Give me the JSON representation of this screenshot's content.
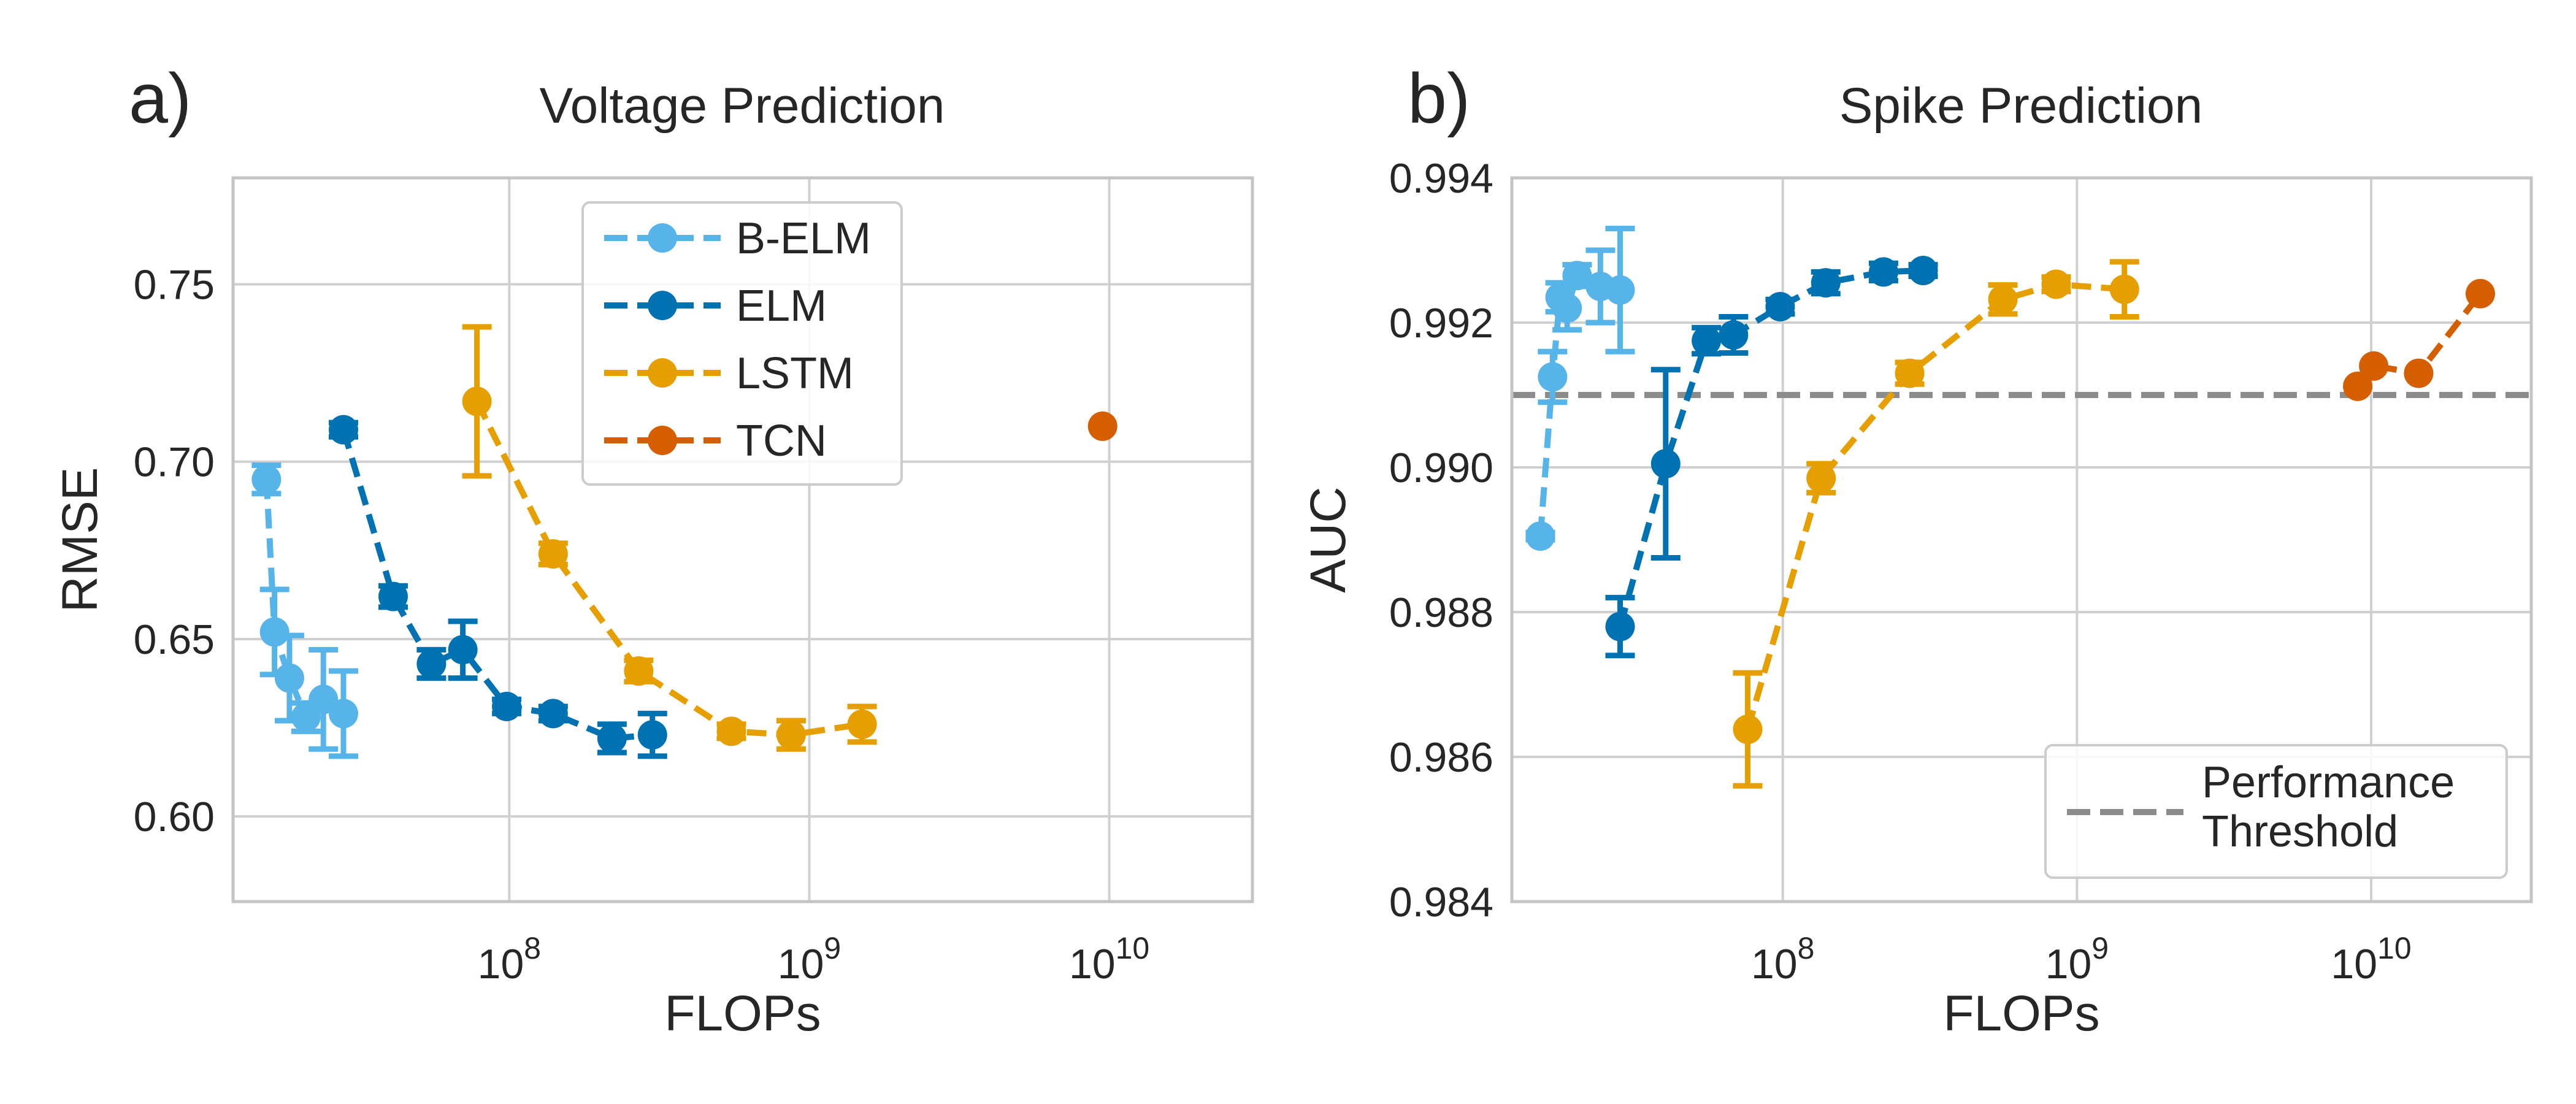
{
  "chart_data": [
    {
      "type": "line",
      "panel_label": "a)",
      "title": "Voltage Prediction",
      "xlabel": "FLOPs",
      "ylabel": "RMSE",
      "xscale": "log",
      "xlim": [
        12000000,
        30000000000
      ],
      "ylim": [
        0.576,
        0.78
      ],
      "grid": true,
      "x_ticks": [
        {
          "value": 100000000,
          "base": "10",
          "exp": "8"
        },
        {
          "value": 1000000000,
          "base": "10",
          "exp": "9"
        },
        {
          "value": 10000000000,
          "base": "10",
          "exp": "10"
        }
      ],
      "y_ticks": [
        {
          "value": 0.6,
          "label": "0.60"
        },
        {
          "value": 0.65,
          "label": "0.65"
        },
        {
          "value": 0.7,
          "label": "0.70"
        },
        {
          "value": 0.75,
          "label": "0.75"
        }
      ],
      "legend_position": "top-center",
      "series": [
        {
          "name": "B-ELM",
          "color": "#56b4e9",
          "x": [
            15500000,
            16500000,
            18500000,
            21000000,
            24000000,
            28000000
          ],
          "y": [
            0.695,
            0.652,
            0.639,
            0.628,
            0.633,
            0.629
          ],
          "err": [
            0.004,
            0.012,
            0.012,
            0.004,
            0.014,
            0.012
          ]
        },
        {
          "name": "ELM",
          "color": "#0072b2",
          "x": [
            28000000,
            41000000,
            55000000,
            70000000,
            98000000,
            140000000,
            220000000,
            300000000
          ],
          "y": [
            0.709,
            0.662,
            0.643,
            0.647,
            0.631,
            0.629,
            0.622,
            0.623
          ],
          "err": [
            0.002,
            0.003,
            0.004,
            0.008,
            0.002,
            0.002,
            0.004,
            0.006
          ]
        },
        {
          "name": "LSTM",
          "color": "#e69f00",
          "x": [
            78000000,
            140000000,
            270000000,
            550000000,
            870000000,
            1500000000
          ],
          "y": [
            0.717,
            0.674,
            0.641,
            0.624,
            0.623,
            0.626
          ],
          "err": [
            0.021,
            0.003,
            0.003,
            0.002,
            0.004,
            0.005
          ]
        },
        {
          "name": "TCN",
          "color": "#d55e00",
          "x": [
            9500000000
          ],
          "y": [
            0.71
          ],
          "err": [
            0
          ]
        }
      ]
    },
    {
      "type": "line",
      "panel_label": "b)",
      "title": "Spike Prediction",
      "xlabel": "FLOPs",
      "ylabel": "AUC",
      "xscale": "log",
      "xlim": [
        12000000,
        35000000000
      ],
      "ylim": [
        0.984,
        0.994
      ],
      "grid": true,
      "x_ticks": [
        {
          "value": 100000000,
          "base": "10",
          "exp": "8"
        },
        {
          "value": 1000000000,
          "base": "10",
          "exp": "9"
        },
        {
          "value": 10000000000,
          "base": "10",
          "exp": "10"
        }
      ],
      "y_ticks": [
        {
          "value": 0.984,
          "label": "0.984"
        },
        {
          "value": 0.986,
          "label": "0.986"
        },
        {
          "value": 0.988,
          "label": "0.988"
        },
        {
          "value": 0.99,
          "label": "0.990"
        },
        {
          "value": 0.992,
          "label": "0.992"
        },
        {
          "value": 0.994,
          "label": "0.994"
        }
      ],
      "threshold": {
        "value": 0.991,
        "label_line1": "Performance",
        "label_line2": "Threshold",
        "color": "#8c8c8c"
      },
      "legend_position": "bottom-right",
      "series": [
        {
          "name": "B-ELM",
          "color": "#56b4e9",
          "x": [
            15000000,
            16500000,
            17500000,
            18500000,
            20000000,
            24000000,
            28000000
          ],
          "y": [
            0.98905,
            0.99125,
            0.99235,
            0.9922,
            0.99265,
            0.9925,
            0.99245
          ],
          "err": [
            5e-05,
            0.00035,
            0.0002,
            0.0003,
            0.00015,
            0.0005,
            0.00085
          ]
        },
        {
          "name": "ELM",
          "color": "#0072b2",
          "x": [
            28000000,
            40000000,
            55000000,
            68000000,
            98000000,
            140000000,
            220000000,
            300000000
          ],
          "y": [
            0.9878,
            0.99005,
            0.99175,
            0.99183,
            0.99222,
            0.99255,
            0.9927,
            0.99272
          ],
          "err": [
            0.0004,
            0.0013,
            0.00018,
            0.00025,
            0.0001,
            0.00015,
            0.00012,
            8e-05
          ]
        },
        {
          "name": "LSTM",
          "color": "#e69f00",
          "x": [
            76000000,
            135000000,
            270000000,
            560000000,
            850000000,
            1450000000
          ],
          "y": [
            0.98638,
            0.98985,
            0.9913,
            0.99232,
            0.99253,
            0.99246
          ],
          "err": [
            0.00078,
            0.0002,
            0.00015,
            0.0002,
            0.0001,
            0.00038
          ]
        },
        {
          "name": "TCN",
          "color": "#d55e00",
          "x": [
            9000000000,
            10200000000,
            14500000000,
            23500000000
          ],
          "y": [
            0.99112,
            0.9914,
            0.9913,
            0.9924
          ],
          "err": [
            0,
            0,
            0,
            0
          ]
        }
      ]
    }
  ]
}
